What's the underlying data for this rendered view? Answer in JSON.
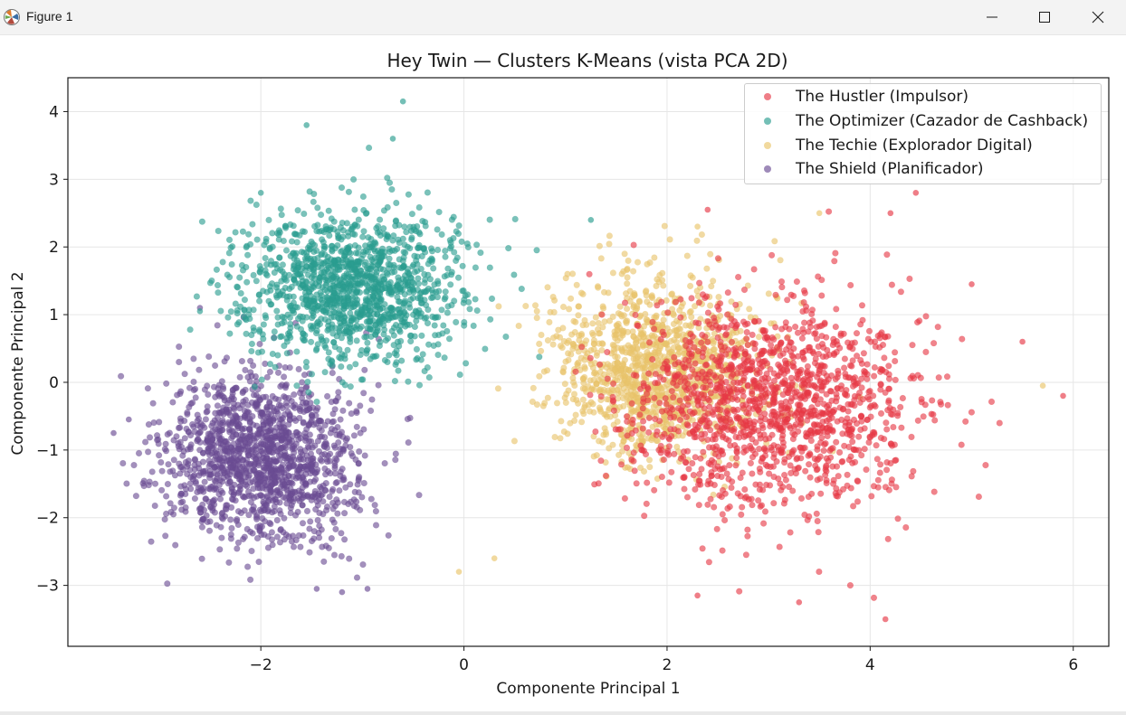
{
  "window": {
    "title": "Figure 1",
    "app_icon": "matplotlib-icon",
    "controls": [
      "minimize-icon",
      "maximize-icon",
      "close-icon"
    ]
  },
  "chart_data": {
    "type": "scatter",
    "title": "Hey Twin — Clusters K-Means (vista PCA 2D)",
    "xlabel": "Componente Principal 1",
    "ylabel": "Componente Principal 2",
    "xlim": [
      -3.9,
      6.35
    ],
    "ylim": [
      -3.9,
      4.5
    ],
    "xticks": [
      -2,
      0,
      2,
      4,
      6
    ],
    "xtick_labels": [
      "−2",
      "0",
      "2",
      "4",
      "6"
    ],
    "yticks": [
      -3,
      -2,
      -1,
      0,
      1,
      2,
      3,
      4
    ],
    "ytick_labels": [
      "−3",
      "−2",
      "−1",
      "0",
      "1",
      "2",
      "3",
      "4"
    ],
    "grid": true,
    "legend_position": "top-right",
    "series": [
      {
        "name": "The Hustler (Impulsor)",
        "color": "#e63946",
        "center": [
          3.0,
          -0.3
        ],
        "spread": [
          0.95,
          1.0
        ],
        "x_range": [
          1.0,
          5.9
        ],
        "y_range": [
          -3.5,
          2.8
        ],
        "approx_points": 2600,
        "sample_points": [
          [
            4.45,
            2.8
          ],
          [
            4.2,
            2.5
          ],
          [
            2.4,
            2.55
          ],
          [
            5.9,
            -0.2
          ],
          [
            4.15,
            -3.5
          ],
          [
            3.3,
            -3.25
          ],
          [
            2.3,
            -3.15
          ],
          [
            5.0,
            1.45
          ],
          [
            5.5,
            0.6
          ]
        ]
      },
      {
        "name": "The Optimizer (Cazador de Cashback)",
        "color": "#2a9d8f",
        "center": [
          -1.1,
          1.4
        ],
        "spread": [
          0.7,
          0.7
        ],
        "x_range": [
          -2.7,
          1.3
        ],
        "y_range": [
          -0.4,
          4.15
        ],
        "approx_points": 2400,
        "sample_points": [
          [
            -0.6,
            4.15
          ],
          [
            -1.55,
            3.8
          ],
          [
            -0.7,
            3.6
          ],
          [
            -2.0,
            2.8
          ],
          [
            1.25,
            2.4
          ],
          [
            -2.6,
            1.05
          ]
        ]
      },
      {
        "name": "The Techie (Explorador Digital)",
        "color": "#e9c46a",
        "center": [
          1.9,
          0.2
        ],
        "spread": [
          0.65,
          0.85
        ],
        "x_range": [
          -0.1,
          5.7
        ],
        "y_range": [
          -2.85,
          2.5
        ],
        "approx_points": 2200,
        "sample_points": [
          [
            3.5,
            2.5
          ],
          [
            -0.05,
            -2.8
          ],
          [
            0.3,
            -2.6
          ],
          [
            5.7,
            -0.05
          ],
          [
            2.3,
            2.3
          ]
        ]
      },
      {
        "name": "The Shield (Planificador)",
        "color": "#6a4c93",
        "center": [
          -2.0,
          -1.1
        ],
        "spread": [
          0.6,
          0.8
        ],
        "x_range": [
          -3.45,
          0.5
        ],
        "y_range": [
          -3.1,
          1.1
        ],
        "approx_points": 2600,
        "sample_points": [
          [
            -3.45,
            -0.75
          ],
          [
            -3.3,
            -0.55
          ],
          [
            -1.45,
            -3.05
          ],
          [
            -1.2,
            -3.1
          ],
          [
            -0.95,
            -3.05
          ],
          [
            -2.6,
            1.1
          ]
        ]
      }
    ]
  }
}
